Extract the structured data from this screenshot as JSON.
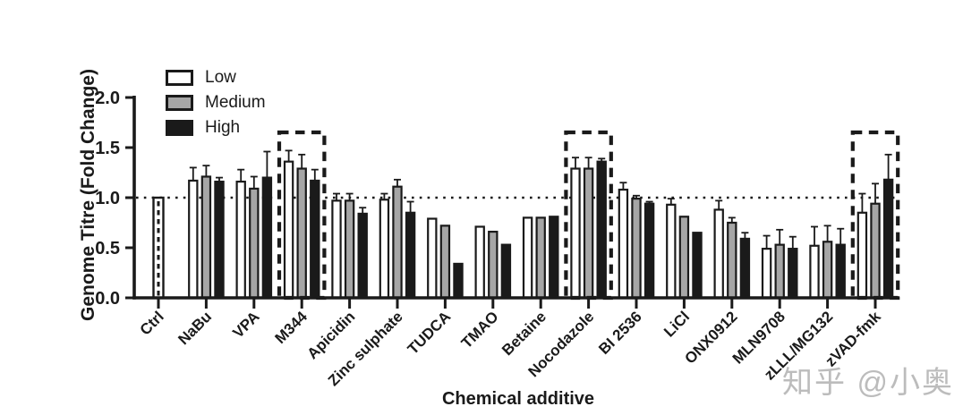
{
  "watermark": {
    "text": "知乎 @小奥"
  },
  "colors": {
    "ink": "#1a1a1a",
    "bar_low_fill": "#ffffff",
    "bar_medium_fill": "#a6a6a6",
    "bar_high_fill": "#1a1a1a",
    "watermark_gray": "#bcbcbc",
    "background": "#ffffff"
  },
  "chart_data": {
    "type": "bar",
    "title": "",
    "xlabel": "Chemical additive",
    "ylabel": "Genome Titre (Fold Change)",
    "ylim": [
      0.0,
      2.0
    ],
    "yticks": [
      "0.0",
      "0.5",
      "1.0",
      "1.5",
      "2.0"
    ],
    "ytick_values": [
      0.0,
      0.5,
      1.0,
      1.5,
      2.0
    ],
    "grid": false,
    "reference_line_y": 1.0,
    "reference_line_style": "dotted",
    "legend": [
      "Low",
      "Medium",
      "High"
    ],
    "legend_position": "top-left-inside",
    "categories": [
      "Ctrl",
      "NaBu",
      "VPA",
      "M344",
      "Apicidin",
      "Zinc sulphate",
      "TUDCA",
      "TMAO",
      "Betaine",
      "Nocodazole",
      "BI 2536",
      "LiCl",
      "ONX0912",
      "MLN9708",
      "zLLL/MG132",
      "zVAD-fmk"
    ],
    "highlighted_categories": [
      "M344",
      "Nocodazole",
      "zVAD-fmk"
    ],
    "control_bar": {
      "category": "Ctrl",
      "value": 1.0,
      "style": "white-with-dashed-center-stripe"
    },
    "series": [
      {
        "name": "Low",
        "fill": "#ffffff",
        "values": [
          null,
          1.17,
          1.16,
          1.36,
          0.97,
          0.98,
          0.79,
          0.71,
          0.8,
          1.29,
          1.08,
          0.93,
          0.88,
          0.49,
          0.52,
          0.85
        ],
        "errors": [
          null,
          0.13,
          0.12,
          0.11,
          0.07,
          0.06,
          0,
          0,
          0,
          0.11,
          0.07,
          0.06,
          0.09,
          0.13,
          0.19,
          0.19
        ]
      },
      {
        "name": "Medium",
        "fill": "#a6a6a6",
        "values": [
          null,
          1.21,
          1.09,
          1.29,
          0.97,
          1.11,
          0.72,
          0.66,
          0.8,
          1.29,
          0.99,
          0.81,
          0.75,
          0.53,
          0.56,
          0.94
        ],
        "errors": [
          null,
          0.11,
          0.12,
          0.14,
          0.07,
          0.07,
          0,
          0,
          0,
          0.11,
          0.03,
          0,
          0.05,
          0.15,
          0.16,
          0.2
        ]
      },
      {
        "name": "High",
        "fill": "#1a1a1a",
        "values": [
          null,
          1.16,
          1.2,
          1.17,
          0.84,
          0.85,
          0.34,
          0.53,
          0.81,
          1.36,
          0.94,
          0.65,
          0.59,
          0.49,
          0.53,
          1.18
        ],
        "errors": [
          null,
          0.04,
          0.26,
          0.11,
          0.06,
          0.11,
          0,
          0,
          0,
          0.03,
          0.02,
          0,
          0.06,
          0.12,
          0.16,
          0.25
        ]
      }
    ]
  }
}
